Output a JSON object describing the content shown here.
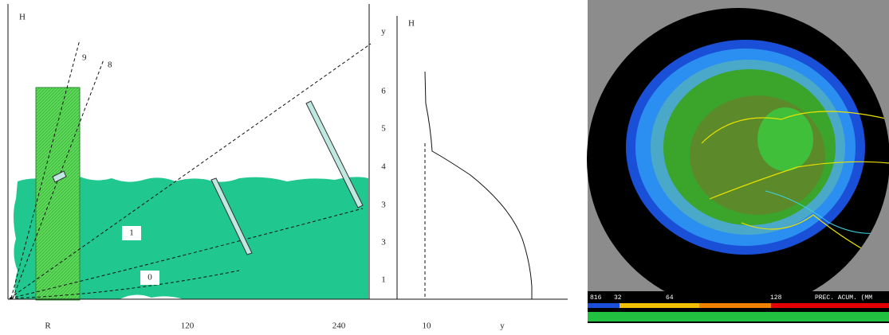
{
  "left_panel": {
    "axis_label_h": "H",
    "beam_labels": [
      "9",
      "8"
    ],
    "scale_labels": [
      "y",
      "6",
      "5",
      "4",
      "3",
      "3",
      "1"
    ],
    "ray_labels": [
      "1",
      "0"
    ],
    "x_labels": [
      "R",
      "120",
      "240"
    ]
  },
  "profile_panel": {
    "axis_label_h": "H",
    "x_labels": [
      "10",
      "y"
    ]
  },
  "radar_image": {
    "legend_labels": [
      "816",
      "32",
      "64",
      "128",
      "PREC. ACUM. (MM"
    ]
  }
}
